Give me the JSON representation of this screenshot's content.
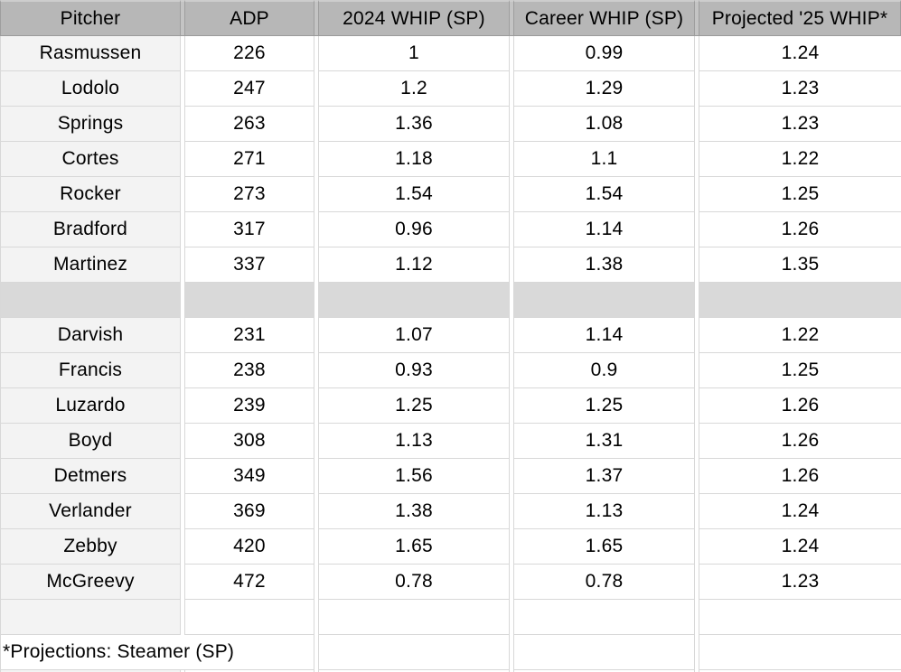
{
  "table": {
    "header": {
      "cells": [
        "Pitcher",
        "ADP",
        "2024 WHIP (SP)",
        "Career WHIP (SP)",
        "Projected '25 WHIP*"
      ]
    },
    "groups": [
      {
        "name": "group-1",
        "rows": [
          [
            "Rasmussen",
            "226",
            "1",
            "0.99",
            "1.24"
          ],
          [
            "Lodolo",
            "247",
            "1.2",
            "1.29",
            "1.23"
          ],
          [
            "Springs",
            "263",
            "1.36",
            "1.08",
            "1.23"
          ],
          [
            "Cortes",
            "271",
            "1.18",
            "1.1",
            "1.22"
          ],
          [
            "Rocker",
            "273",
            "1.54",
            "1.54",
            "1.25"
          ],
          [
            "Bradford",
            "317",
            "0.96",
            "1.14",
            "1.26"
          ],
          [
            "Martinez",
            "337",
            "1.12",
            "1.38",
            "1.35"
          ]
        ]
      },
      {
        "name": "group-2",
        "rows": [
          [
            "Darvish",
            "231",
            "1.07",
            "1.14",
            "1.22"
          ],
          [
            "Francis",
            "238",
            "0.93",
            "0.9",
            "1.25"
          ],
          [
            "Luzardo",
            "239",
            "1.25",
            "1.25",
            "1.26"
          ],
          [
            "Boyd",
            "308",
            "1.13",
            "1.31",
            "1.26"
          ],
          [
            "Detmers",
            "349",
            "1.56",
            "1.37",
            "1.26"
          ],
          [
            "Verlander",
            "369",
            "1.38",
            "1.13",
            "1.24"
          ],
          [
            "Zebby",
            "420",
            "1.65",
            "1.65",
            "1.24"
          ],
          [
            "McGreevy",
            "472",
            "0.78",
            "0.78",
            "1.23"
          ]
        ]
      }
    ],
    "footnote": "*Projections: Steamer (SP)",
    "colors": {
      "header_fill": "#b7b7b7",
      "separator_fill": "#d9d9d9",
      "first_column_fill": "#f3f3f3",
      "grid_line": "#d8d8d8",
      "header_line": "#9a9a9a",
      "text": "#000000",
      "cell_background": "#ffffff"
    }
  }
}
